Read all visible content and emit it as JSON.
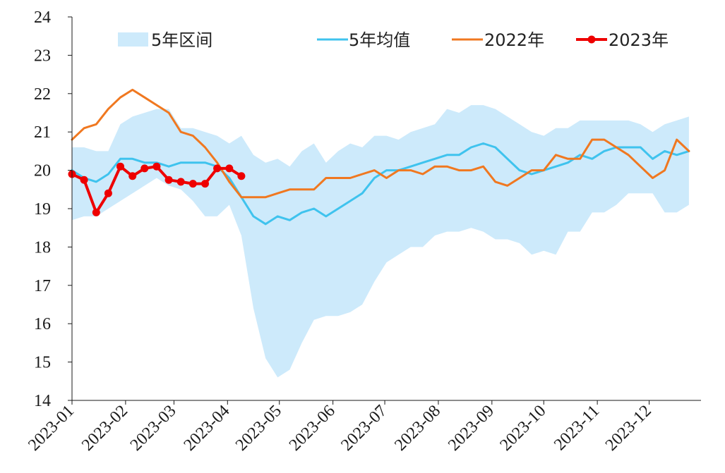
{
  "chart_data": {
    "type": "line",
    "title": "",
    "xlabel": "",
    "ylabel": "",
    "ylim": [
      14,
      24
    ],
    "yticks": [
      "14",
      "15",
      "16",
      "17",
      "18",
      "19",
      "20",
      "21",
      "22",
      "23",
      "24"
    ],
    "xticks": [
      "2023-01",
      "2023-02",
      "2023-03",
      "2023-04",
      "2023-05",
      "2023-06",
      "2023-07",
      "2023-08",
      "2023-09",
      "2023-10",
      "2023-11",
      "2023-12"
    ],
    "legend_placement": "top",
    "grid": false,
    "band": {
      "name": "5年区间",
      "color": "#cdeafb",
      "x": [
        "2023-01-01",
        "2023-01-08",
        "2023-01-15",
        "2023-01-22",
        "2023-01-29",
        "2023-02-05",
        "2023-02-12",
        "2023-02-19",
        "2023-02-26",
        "2023-03-05",
        "2023-03-12",
        "2023-03-19",
        "2023-03-26",
        "2023-04-02",
        "2023-04-09",
        "2023-04-16",
        "2023-04-23",
        "2023-04-30",
        "2023-05-07",
        "2023-05-14",
        "2023-05-21",
        "2023-05-28",
        "2023-06-04",
        "2023-06-11",
        "2023-06-18",
        "2023-06-25",
        "2023-07-02",
        "2023-07-09",
        "2023-07-16",
        "2023-07-23",
        "2023-07-30",
        "2023-08-06",
        "2023-08-13",
        "2023-08-20",
        "2023-08-27",
        "2023-09-03",
        "2023-09-10",
        "2023-09-17",
        "2023-09-24",
        "2023-10-01",
        "2023-10-08",
        "2023-10-15",
        "2023-10-22",
        "2023-10-29",
        "2023-11-05",
        "2023-11-12",
        "2023-11-19",
        "2023-11-26",
        "2023-12-03",
        "2023-12-10",
        "2023-12-17",
        "2023-12-24"
      ],
      "upper": [
        20.6,
        20.6,
        20.5,
        20.5,
        21.2,
        21.4,
        21.5,
        21.6,
        21.6,
        21.1,
        21.1,
        21.0,
        20.9,
        20.7,
        20.9,
        20.4,
        20.2,
        20.3,
        20.1,
        20.5,
        20.7,
        20.2,
        20.5,
        20.7,
        20.6,
        20.9,
        20.9,
        20.8,
        21.0,
        21.1,
        21.2,
        21.6,
        21.5,
        21.7,
        21.7,
        21.6,
        21.4,
        21.2,
        21.0,
        20.9,
        21.1,
        21.1,
        21.3,
        21.3,
        21.3,
        21.3,
        21.3,
        21.2,
        21.0,
        21.2,
        21.3,
        21.4
      ],
      "lower": [
        18.7,
        18.8,
        18.8,
        19.0,
        19.2,
        19.4,
        19.6,
        19.8,
        19.6,
        19.5,
        19.2,
        18.8,
        18.8,
        19.1,
        18.3,
        16.4,
        15.1,
        14.6,
        14.8,
        15.5,
        16.1,
        16.2,
        16.2,
        16.3,
        16.5,
        17.1,
        17.6,
        17.8,
        18.0,
        18.0,
        18.3,
        18.4,
        18.4,
        18.5,
        18.4,
        18.2,
        18.2,
        18.1,
        17.8,
        17.9,
        17.8,
        18.4,
        18.4,
        18.9,
        18.9,
        19.1,
        19.4,
        19.4,
        19.4,
        18.9,
        18.9,
        19.1
      ]
    },
    "series": [
      {
        "name": "5年均值",
        "color": "#3fc3ee",
        "x": [
          "2023-01-01",
          "2023-01-08",
          "2023-01-15",
          "2023-01-22",
          "2023-01-29",
          "2023-02-05",
          "2023-02-12",
          "2023-02-19",
          "2023-02-26",
          "2023-03-05",
          "2023-03-12",
          "2023-03-19",
          "2023-03-26",
          "2023-04-02",
          "2023-04-09",
          "2023-04-16",
          "2023-04-23",
          "2023-04-30",
          "2023-05-07",
          "2023-05-14",
          "2023-05-21",
          "2023-05-28",
          "2023-06-04",
          "2023-06-11",
          "2023-06-18",
          "2023-06-25",
          "2023-07-02",
          "2023-07-09",
          "2023-07-16",
          "2023-07-23",
          "2023-07-30",
          "2023-08-06",
          "2023-08-13",
          "2023-08-20",
          "2023-08-27",
          "2023-09-03",
          "2023-09-10",
          "2023-09-17",
          "2023-09-24",
          "2023-10-01",
          "2023-10-08",
          "2023-10-15",
          "2023-10-22",
          "2023-10-29",
          "2023-11-05",
          "2023-11-12",
          "2023-11-19",
          "2023-11-26",
          "2023-12-03",
          "2023-12-10",
          "2023-12-17",
          "2023-12-24"
        ],
        "values": [
          20.0,
          19.8,
          19.7,
          19.9,
          20.3,
          20.3,
          20.2,
          20.2,
          20.1,
          20.2,
          20.2,
          20.2,
          20.1,
          19.8,
          19.3,
          18.8,
          18.6,
          18.8,
          18.7,
          18.9,
          19.0,
          18.8,
          19.0,
          19.2,
          19.4,
          19.8,
          20.0,
          20.0,
          20.1,
          20.2,
          20.3,
          20.4,
          20.4,
          20.6,
          20.7,
          20.6,
          20.3,
          20.0,
          19.9,
          20.0,
          20.1,
          20.2,
          20.4,
          20.3,
          20.5,
          20.6,
          20.6,
          20.6,
          20.3,
          20.5,
          20.4,
          20.5
        ]
      },
      {
        "name": "2022年",
        "color": "#f07820",
        "x": [
          "2023-01-01",
          "2023-01-08",
          "2023-01-15",
          "2023-01-22",
          "2023-01-29",
          "2023-02-05",
          "2023-02-12",
          "2023-02-19",
          "2023-02-26",
          "2023-03-05",
          "2023-03-12",
          "2023-03-19",
          "2023-03-26",
          "2023-04-02",
          "2023-04-09",
          "2023-04-16",
          "2023-04-23",
          "2023-04-30",
          "2023-05-07",
          "2023-05-14",
          "2023-05-21",
          "2023-05-28",
          "2023-06-04",
          "2023-06-11",
          "2023-06-18",
          "2023-06-25",
          "2023-07-02",
          "2023-07-09",
          "2023-07-16",
          "2023-07-23",
          "2023-07-30",
          "2023-08-06",
          "2023-08-13",
          "2023-08-20",
          "2023-08-27",
          "2023-09-03",
          "2023-09-10",
          "2023-09-17",
          "2023-09-24",
          "2023-10-01",
          "2023-10-08",
          "2023-10-15",
          "2023-10-22",
          "2023-10-29",
          "2023-11-05",
          "2023-11-12",
          "2023-11-19",
          "2023-11-26",
          "2023-12-03",
          "2023-12-10",
          "2023-12-17",
          "2023-12-24"
        ],
        "values": [
          20.8,
          21.1,
          21.2,
          21.6,
          21.9,
          22.1,
          21.9,
          21.7,
          21.5,
          21.0,
          20.9,
          20.6,
          20.2,
          19.7,
          19.3,
          19.3,
          19.3,
          19.4,
          19.5,
          19.5,
          19.5,
          19.8,
          19.8,
          19.8,
          19.9,
          20.0,
          19.8,
          20.0,
          20.0,
          19.9,
          20.1,
          20.1,
          20.0,
          20.0,
          20.1,
          19.7,
          19.6,
          19.8,
          20.0,
          20.0,
          20.4,
          20.3,
          20.3,
          20.8,
          20.8,
          20.6,
          20.4,
          20.1,
          19.8,
          20.0,
          20.8,
          20.5
        ]
      },
      {
        "name": "2023年",
        "color": "#ee0000",
        "marker": "circle",
        "x": [
          "2023-01-01",
          "2023-01-08",
          "2023-01-15",
          "2023-01-22",
          "2023-01-29",
          "2023-02-05",
          "2023-02-12",
          "2023-02-19",
          "2023-02-26",
          "2023-03-05",
          "2023-03-12",
          "2023-03-19",
          "2023-03-26",
          "2023-04-02",
          "2023-04-09",
          "2023-04-16"
        ],
        "values": [
          19.9,
          19.75,
          18.9,
          19.4,
          20.1,
          19.85,
          20.05,
          20.1,
          19.75,
          19.7,
          19.65,
          19.65,
          20.05,
          20.05,
          19.85,
          null
        ]
      }
    ]
  }
}
